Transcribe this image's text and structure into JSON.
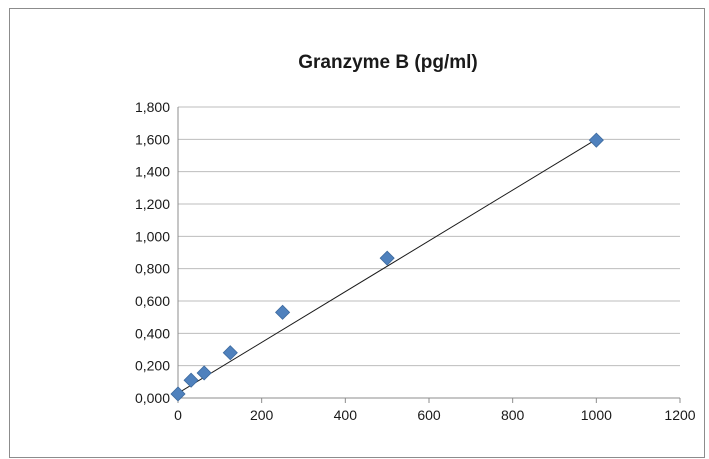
{
  "chart_data": {
    "type": "scatter",
    "title": "Granzyme B (pg/ml)",
    "xlabel": "",
    "ylabel": "",
    "x_ticks": [
      "0",
      "200",
      "400",
      "600",
      "800",
      "1000",
      "1200"
    ],
    "y_ticks": [
      "0,000",
      "0,200",
      "0,400",
      "0,600",
      "0,800",
      "1,000",
      "1,200",
      "1,400",
      "1,600",
      "1,800"
    ],
    "xlim": [
      0,
      1200
    ],
    "ylim": [
      0,
      1.8
    ],
    "grid": "horizontal",
    "legend": "none",
    "series": [
      {
        "x": [
          0,
          31.25,
          62.5,
          125,
          250,
          500,
          1000
        ],
        "y": [
          0.025,
          0.11,
          0.155,
          0.28,
          0.53,
          0.865,
          1.595
        ],
        "color": "#4f81bd",
        "marker": "diamond"
      }
    ],
    "trendline": {
      "type": "linear",
      "x": [
        0,
        1000
      ],
      "y": [
        0.03,
        1.6
      ]
    }
  }
}
